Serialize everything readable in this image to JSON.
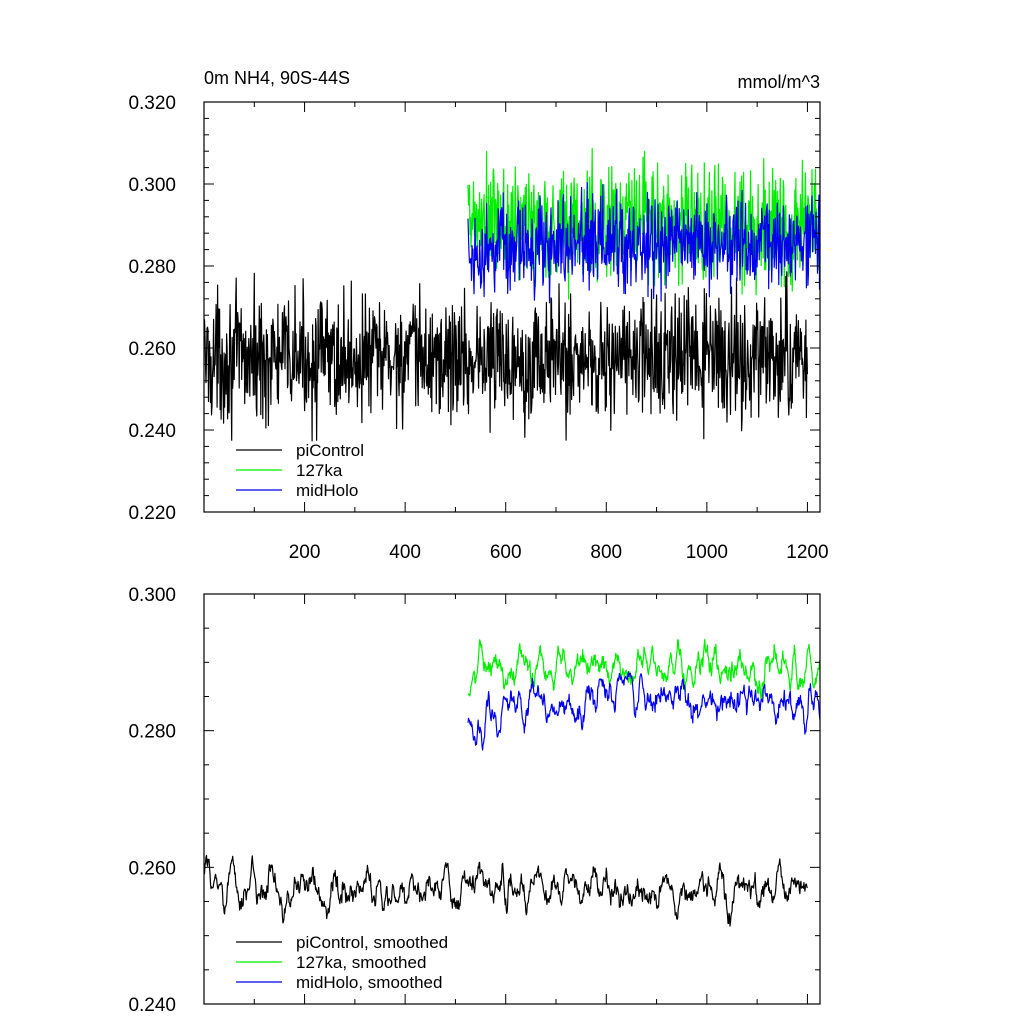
{
  "colors": {
    "piControl": "#000000",
    "127ka": "#00ee00",
    "midHolo": "#0000ee"
  },
  "chart_data": [
    {
      "type": "line",
      "title": "0m NH4, 90S-44S",
      "units": "mmol/m^3",
      "xlim": [
        0,
        1225
      ],
      "ylim": [
        0.22,
        0.32
      ],
      "xticks": [
        200,
        400,
        600,
        800,
        1000,
        1200
      ],
      "xtick_labels": [
        "200",
        "400",
        "600",
        "800",
        "1000",
        "1200"
      ],
      "yticks": [
        0.22,
        0.24,
        0.26,
        0.28,
        0.3,
        0.32
      ],
      "ytick_labels": [
        "0.220",
        "0.240",
        "0.260",
        "0.280",
        "0.300",
        "0.320"
      ],
      "legend": "bottom-left",
      "series": [
        {
          "name": "piControl",
          "color": "#000000",
          "x_start": 1,
          "x_end": 1200,
          "mean": 0.2575,
          "noise": 0.0075,
          "trend": 0
        },
        {
          "name": "127ka",
          "color": "#00ee00",
          "x_start": 525,
          "x_end": 1225,
          "mean": 0.2895,
          "noise": 0.0075,
          "trend": 0.001
        },
        {
          "name": "midHolo",
          "color": "#0000ee",
          "x_start": 525,
          "x_end": 1225,
          "mean": 0.2835,
          "noise": 0.0055,
          "trend": 0.002
        }
      ]
    },
    {
      "type": "line",
      "xlim": [
        0,
        1225
      ],
      "ylim": [
        0.24,
        0.3
      ],
      "xticks": [
        200,
        400,
        600,
        800,
        1000,
        1200
      ],
      "yticks": [
        0.24,
        0.26,
        0.28,
        0.3
      ],
      "ytick_labels": [
        "0.240",
        "0.260",
        "0.280",
        "0.300"
      ],
      "legend": "bottom-left",
      "series": [
        {
          "name": "piControl, smoothed",
          "color": "#000000",
          "x_start": 1,
          "x_end": 1200,
          "mean": 0.2575,
          "noise": 0.0025,
          "trend": -0.001
        },
        {
          "name": "127ka, smoothed",
          "color": "#00ee00",
          "x_start": 525,
          "x_end": 1225,
          "mean": 0.2885,
          "noise": 0.0025,
          "trend": 0.001
        },
        {
          "name": "midHolo, smoothed",
          "color": "#0000ee",
          "x_start": 525,
          "x_end": 1225,
          "mean": 0.2815,
          "noise": 0.0025,
          "trend": 0.003
        }
      ]
    }
  ]
}
